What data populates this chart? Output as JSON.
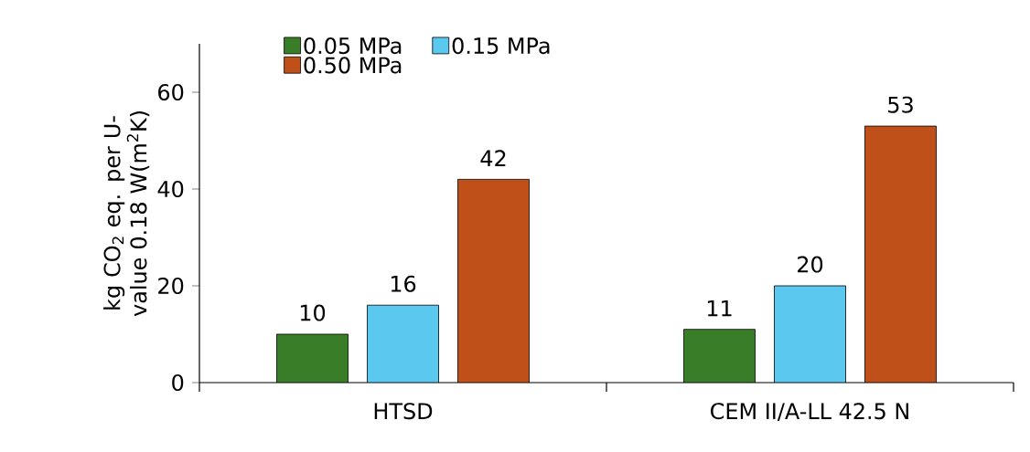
{
  "chart_data": {
    "type": "bar",
    "ylabel": "kg CO$_{2}$ eq. per U-value 0.18 W(m$^{2}$K)",
    "categories": [
      "HTSD",
      "CEM II/A-LL 42.5 N"
    ],
    "series": [
      {
        "name": "0.05 MPa",
        "color": "#3a7d28",
        "values": [
          10,
          11
        ]
      },
      {
        "name": "0.15 MPa",
        "color": "#5bc8f0",
        "values": [
          16,
          20
        ]
      },
      {
        "name": "0.50 MPa",
        "color": "#c0501a",
        "values": [
          42,
          53
        ]
      }
    ],
    "ylim": [
      0,
      70
    ],
    "yticks": [
      0,
      20,
      40,
      60
    ],
    "data_labels": true,
    "legend": "top left",
    "grid": false
  }
}
